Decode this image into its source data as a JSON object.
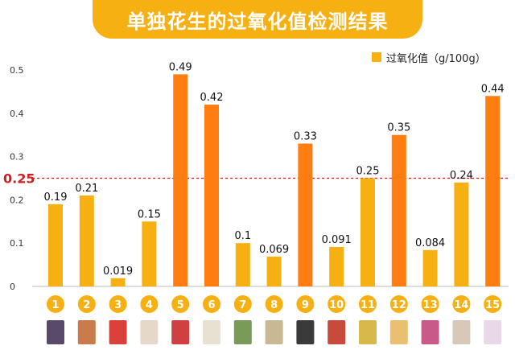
{
  "title": "单独花生的过氧化值检测结果",
  "legend": {
    "label": "过氧化值（g/100g）",
    "color": "#f6b012"
  },
  "colors": {
    "low": "#f6b012",
    "high": "#ff7d11",
    "reference": "#cc1e1e",
    "badge": "#f6b012"
  },
  "chart_data": {
    "type": "bar",
    "title": "单独花生的过氧化值检测结果",
    "xlabel": "",
    "ylabel": "",
    "categories": [
      "1",
      "2",
      "3",
      "4",
      "5",
      "6",
      "7",
      "8",
      "9",
      "10",
      "11",
      "12",
      "13",
      "14",
      "15"
    ],
    "series": [
      {
        "name": "过氧化值（g/100g）",
        "values": [
          0.19,
          0.21,
          0.019,
          0.15,
          0.49,
          0.42,
          0.1,
          0.069,
          0.33,
          0.091,
          0.25,
          0.35,
          0.084,
          0.24,
          0.44
        ],
        "labels": [
          "0.19",
          "0.21",
          "0.019",
          "0.15",
          "0.49",
          "0.42",
          "0.1",
          "0.069",
          "0.33",
          "0.091",
          "0.25",
          "0.35",
          "0.084",
          "0.24",
          "0.44"
        ]
      }
    ],
    "ylim": [
      0,
      0.5
    ],
    "yticks": [
      "0",
      "0.1",
      "0.2",
      "0.3",
      "0.4",
      "0.5"
    ],
    "reference_line": {
      "value": 0.25,
      "label": "0.25"
    },
    "highlight_threshold": 0.25,
    "grid": false,
    "legend_position": "top-right"
  }
}
